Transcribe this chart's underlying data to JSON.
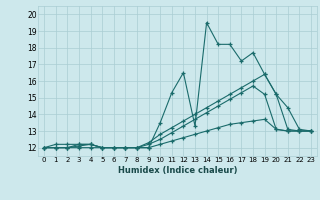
{
  "xlabel": "Humidex (Indice chaleur)",
  "bg_color": "#cde8ec",
  "grid_color": "#aacdd3",
  "line_color": "#1a6b6b",
  "xlim": [
    -0.5,
    23.5
  ],
  "ylim": [
    11.5,
    20.5
  ],
  "xticks": [
    0,
    1,
    2,
    3,
    4,
    5,
    6,
    7,
    8,
    9,
    10,
    11,
    12,
    13,
    14,
    15,
    16,
    17,
    18,
    19,
    20,
    21,
    22,
    23
  ],
  "yticks": [
    12,
    13,
    14,
    15,
    16,
    17,
    18,
    19,
    20
  ],
  "series": [
    {
      "x": [
        0,
        1,
        2,
        3,
        4,
        5,
        6,
        7,
        8,
        9,
        10,
        11,
        12,
        13,
        14,
        15,
        16,
        17,
        18,
        19,
        20,
        21,
        22,
        23
      ],
      "y": [
        12,
        12.2,
        12.2,
        12.2,
        12.2,
        12,
        12,
        12,
        12,
        12,
        13.5,
        15.3,
        16.5,
        13.3,
        19.5,
        18.2,
        18.2,
        17.2,
        17.7,
        16.4,
        15.2,
        14.4,
        13.1,
        13.0
      ]
    },
    {
      "x": [
        0,
        1,
        2,
        3,
        4,
        5,
        6,
        7,
        8,
        9,
        10,
        11,
        12,
        13,
        14,
        15,
        16,
        17,
        18,
        19,
        20,
        21,
        22,
        23
      ],
      "y": [
        12,
        12,
        12,
        12.2,
        12.2,
        12,
        12,
        12,
        12,
        12.3,
        12.8,
        13.2,
        13.6,
        14.0,
        14.4,
        14.8,
        15.2,
        15.6,
        16.0,
        16.4,
        15.2,
        13.1,
        13.0,
        13.0
      ]
    },
    {
      "x": [
        0,
        1,
        2,
        3,
        4,
        5,
        6,
        7,
        8,
        9,
        10,
        11,
        12,
        13,
        14,
        15,
        16,
        17,
        18,
        19,
        20,
        21,
        22,
        23
      ],
      "y": [
        12,
        12,
        12,
        12.1,
        12.2,
        12,
        12,
        12,
        12,
        12.2,
        12.5,
        12.9,
        13.3,
        13.7,
        14.1,
        14.5,
        14.9,
        15.3,
        15.7,
        15.2,
        13.1,
        13.0,
        13.0,
        13.0
      ]
    },
    {
      "x": [
        0,
        1,
        2,
        3,
        4,
        5,
        6,
        7,
        8,
        9,
        10,
        11,
        12,
        13,
        14,
        15,
        16,
        17,
        18,
        19,
        20,
        21,
        22,
        23
      ],
      "y": [
        12,
        12,
        12,
        12,
        12,
        12,
        12,
        12,
        12,
        12,
        12.2,
        12.4,
        12.6,
        12.8,
        13.0,
        13.2,
        13.4,
        13.5,
        13.6,
        13.7,
        13.1,
        13.0,
        13.0,
        13.0
      ]
    }
  ]
}
